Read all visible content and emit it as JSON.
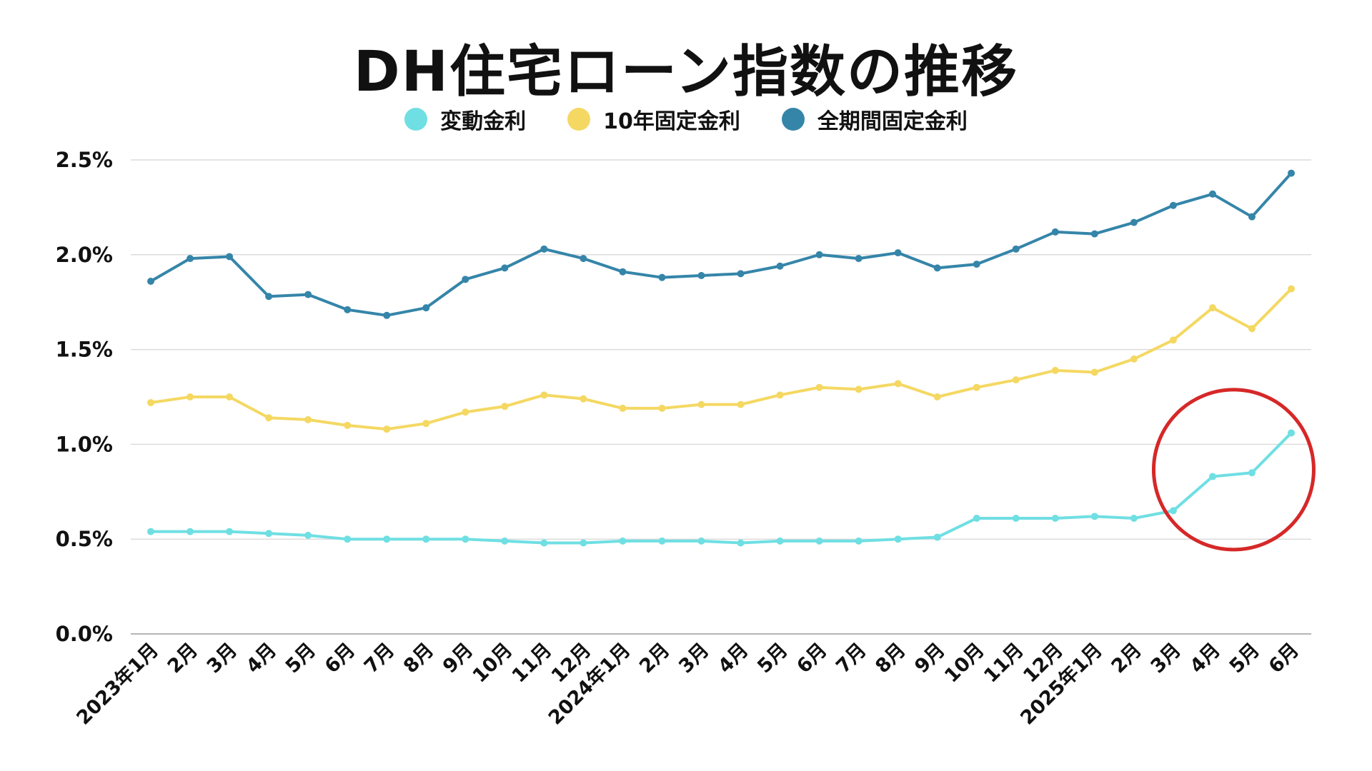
{
  "chart_data": {
    "type": "line",
    "title": "DH住宅ローン指数の推移",
    "categories": [
      "2023年1月",
      "2月",
      "3月",
      "4月",
      "5月",
      "6月",
      "7月",
      "8月",
      "9月",
      "10月",
      "11月",
      "12月",
      "2024年1月",
      "2月",
      "3月",
      "4月",
      "5月",
      "6月",
      "7月",
      "8月",
      "9月",
      "10月",
      "11月",
      "12月",
      "2025年1月",
      "2月",
      "3月",
      "4月",
      "5月",
      "6月"
    ],
    "series": [
      {
        "name": "変動金利",
        "color": "#6fdfe3",
        "values": [
          0.54,
          0.54,
          0.54,
          0.53,
          0.52,
          0.5,
          0.5,
          0.5,
          0.5,
          0.49,
          0.48,
          0.48,
          0.49,
          0.49,
          0.49,
          0.48,
          0.49,
          0.49,
          0.49,
          0.5,
          0.51,
          0.61,
          0.61,
          0.61,
          0.62,
          0.61,
          0.65,
          0.83,
          0.85,
          1.06
        ]
      },
      {
        "name": "10年固定金利",
        "color": "#f4d862",
        "values": [
          1.22,
          1.25,
          1.25,
          1.14,
          1.13,
          1.1,
          1.08,
          1.11,
          1.17,
          1.2,
          1.26,
          1.24,
          1.19,
          1.19,
          1.21,
          1.21,
          1.26,
          1.3,
          1.29,
          1.32,
          1.25,
          1.3,
          1.34,
          1.39,
          1.38,
          1.45,
          1.55,
          1.72,
          1.61,
          1.82
        ]
      },
      {
        "name": "全期間固定金利",
        "color": "#3585a9",
        "values": [
          1.86,
          1.98,
          1.99,
          1.78,
          1.79,
          1.71,
          1.68,
          1.72,
          1.87,
          1.93,
          2.03,
          1.98,
          1.91,
          1.88,
          1.89,
          1.9,
          1.94,
          2.0,
          1.98,
          2.01,
          1.93,
          1.95,
          2.03,
          2.12,
          2.11,
          2.17,
          2.26,
          2.32,
          2.2,
          2.43
        ]
      }
    ],
    "yticks": [
      "0.0%",
      "0.5%",
      "1.0%",
      "1.5%",
      "2.0%",
      "2.5%"
    ],
    "ylim": [
      0,
      2.5
    ],
    "grid": true,
    "legend_position": "top-center",
    "highlight_circle_color": "#d62828",
    "highlight_range": [
      26,
      29
    ]
  }
}
